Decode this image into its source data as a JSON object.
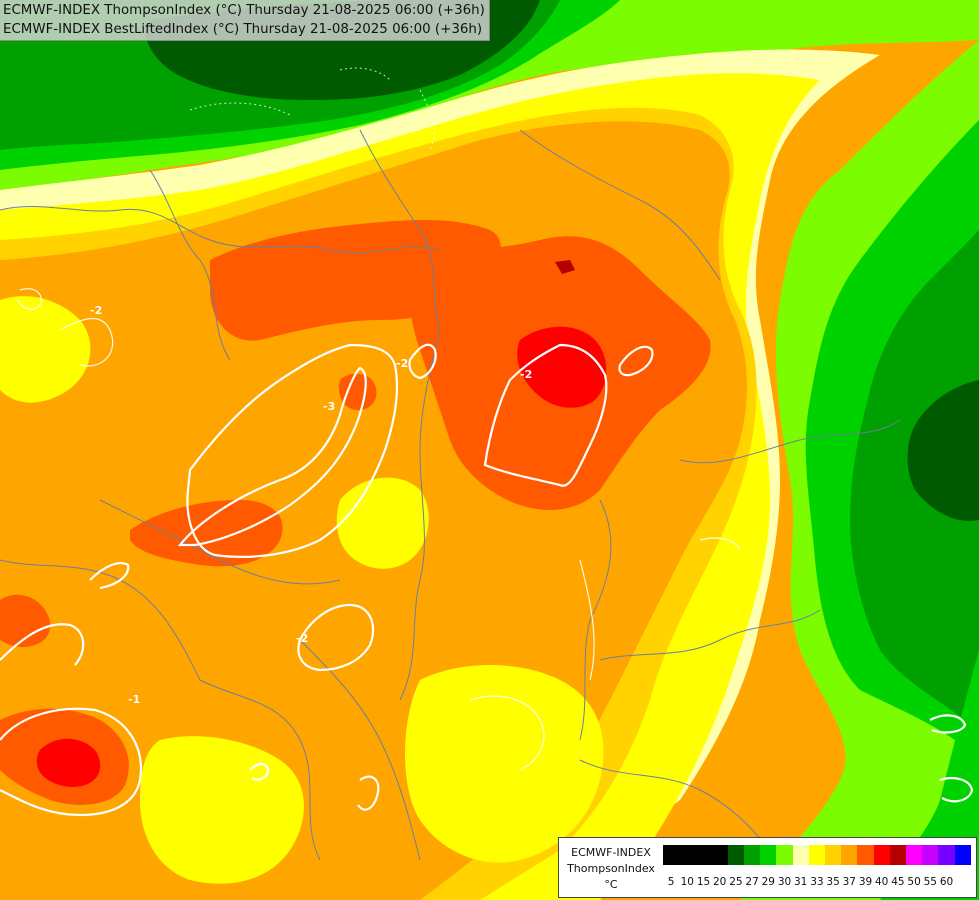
{
  "header": {
    "line1": "ECMWF-INDEX ThompsonIndex (°C) Thursday 21-08-2025 06:00 (+36h)",
    "line2": "ECMWF-INDEX BestLiftedIndex (°C) Thursday 21-08-2025 06:00 (+36h)"
  },
  "legend": {
    "title_model": "ECMWF-INDEX",
    "title_param": "ThompsonIndex",
    "title_unit": "°C",
    "ticks": [
      "5",
      "10",
      "15",
      "20",
      "25",
      "27",
      "29",
      "30",
      "31",
      "33",
      "35",
      "37",
      "39",
      "40",
      "45",
      "50",
      "55",
      "60"
    ],
    "colors": [
      "#000000",
      "#000000",
      "#000000",
      "#000000",
      "#005a00",
      "#00a000",
      "#00d200",
      "#7cfc00",
      "#ffffb0",
      "#ffff00",
      "#ffd200",
      "#ffa500",
      "#ff5a00",
      "#ff0000",
      "#b40000",
      "#ff00ff",
      "#c800ff",
      "#7800ff",
      "#0000ff"
    ]
  },
  "contour_labels": [
    "-2",
    "-2",
    "-3",
    "-2",
    "-2",
    "-1"
  ],
  "colors": {
    "dark_green": "#005a00",
    "mid_green": "#00a000",
    "green": "#00d200",
    "light_green": "#7cfc00",
    "pale_yellow": "#ffffb0",
    "yellow": "#ffff00",
    "light_orange": "#ffd200",
    "orange": "#ffa500",
    "dark_orange": "#ff5a00",
    "red": "#ff0000"
  }
}
